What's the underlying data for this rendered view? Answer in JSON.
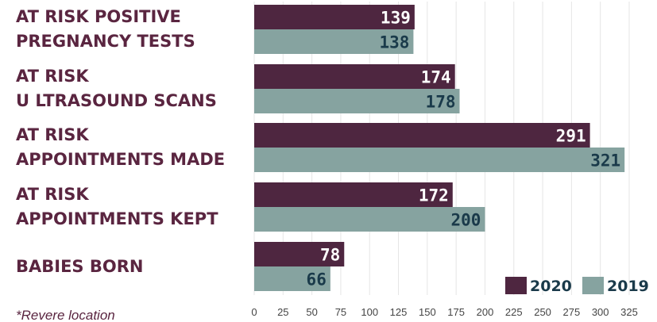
{
  "chart_data": {
    "type": "bar",
    "orientation": "horizontal",
    "categories": [
      [
        "AT RISK POSITIVE",
        "PREGNANCY TESTS"
      ],
      [
        "AT RISK",
        "U LTRASOUND SCANS"
      ],
      [
        "AT RISK",
        "APPOINTMENTS MADE"
      ],
      [
        "AT RISK",
        "APPOINTMENTS KEPT"
      ],
      [
        "BABIES BORN"
      ]
    ],
    "series": [
      {
        "name": "2020",
        "values": [
          139,
          174,
          291,
          172,
          78
        ],
        "color": "#4e2640",
        "label_color": "#ffffff"
      },
      {
        "name": "2019",
        "values": [
          138,
          178,
          321,
          200,
          66
        ],
        "color": "#86a3a0",
        "label_color": "#1a3a4a"
      }
    ],
    "xlim": [
      0,
      325
    ],
    "xticks": [
      0,
      25,
      50,
      75,
      100,
      125,
      150,
      175,
      200,
      225,
      250,
      275,
      300,
      325
    ],
    "grid": true,
    "legend_position": "bottom-right"
  },
  "footnote": "*Revere location"
}
